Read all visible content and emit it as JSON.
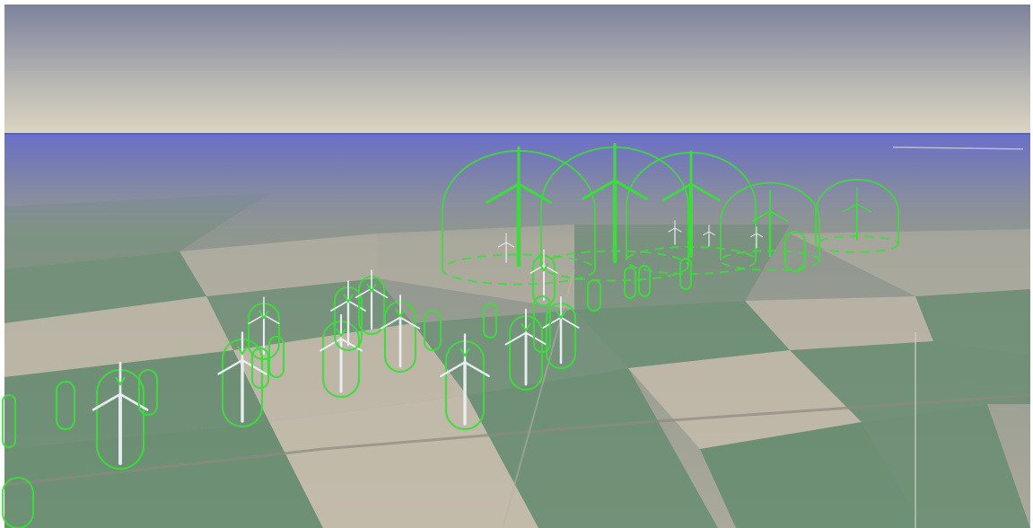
{
  "scene": {
    "kind": "3d-terrain-view",
    "sky_top_color": "#7f84a0",
    "sky_horizon_color": "#d8d2bf",
    "haze_color": "#6e70c6",
    "field_green_color": "#5f8a6c",
    "field_tan_color": "#c9bfae",
    "overlay_color": "#3ddc3d",
    "turbine_color": "#e8eef0",
    "turbine_marker_count": 33
  }
}
